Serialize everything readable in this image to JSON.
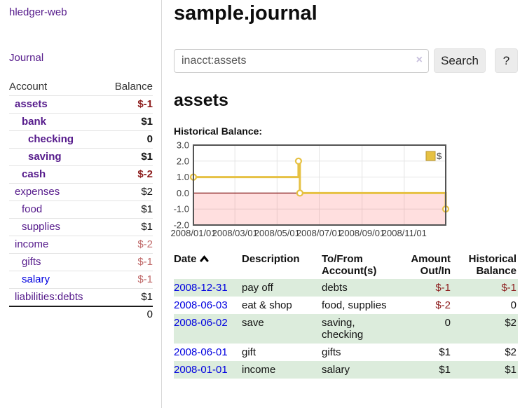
{
  "sidebar": {
    "brand": "hledger-web",
    "journal_link": "Journal",
    "accounts_table": {
      "header_account": "Account",
      "header_balance": "Balance",
      "rows": [
        {
          "name": "assets",
          "balance": "$-1"
        },
        {
          "name": "bank",
          "balance": "$1"
        },
        {
          "name": "checking",
          "balance": "0"
        },
        {
          "name": "saving",
          "balance": "$1"
        },
        {
          "name": "cash",
          "balance": "$-2"
        },
        {
          "name": "expenses",
          "balance": "$2"
        },
        {
          "name": "food",
          "balance": "$1"
        },
        {
          "name": "supplies",
          "balance": "$1"
        },
        {
          "name": "income",
          "balance": "$-2"
        },
        {
          "name": "gifts",
          "balance": "$-1"
        },
        {
          "name": "salary",
          "balance": "$-1"
        },
        {
          "name": "liabilities:debts",
          "balance": "$1"
        }
      ],
      "total": "0"
    }
  },
  "main": {
    "title": "sample.journal",
    "search": {
      "query": "inacct:assets",
      "clear_icon": "×",
      "search_button": "Search",
      "help_button": "?"
    },
    "account_heading": "assets",
    "chart_label": "Historical Balance:",
    "register": {
      "headers": {
        "date": "Date",
        "description": "Description",
        "accounts": "To/From Account(s)",
        "amount": "Amount Out/In",
        "balance": "Historical Balance"
      },
      "rows": [
        {
          "date": "2008-12-31",
          "description": "pay off",
          "accounts": "debts",
          "amount": "$-1",
          "balance": "$-1"
        },
        {
          "date": "2008-06-03",
          "description": "eat & shop",
          "accounts": "food, supplies",
          "amount": "$-2",
          "balance": "0"
        },
        {
          "date": "2008-06-02",
          "description": "save",
          "accounts": "saving, checking",
          "amount": "0",
          "balance": "$2"
        },
        {
          "date": "2008-06-01",
          "description": "gift",
          "accounts": "gifts",
          "amount": "$1",
          "balance": "$2"
        },
        {
          "date": "2008-01-01",
          "description": "income",
          "accounts": "salary",
          "amount": "$1",
          "balance": "$1"
        }
      ]
    }
  },
  "chart_data": {
    "type": "line",
    "title": "Historical Balance",
    "series": [
      {
        "name": "$",
        "step": true,
        "points_day_value": [
          [
            0,
            1
          ],
          [
            152,
            2
          ],
          [
            154,
            0
          ],
          [
            365,
            -1
          ]
        ]
      }
    ],
    "x_ticks": [
      {
        "label": "2008/01/01",
        "day": 0
      },
      {
        "label": "2008/03/01",
        "day": 60
      },
      {
        "label": "2008/05/01",
        "day": 121
      },
      {
        "label": "2008/07/01",
        "day": 182
      },
      {
        "label": "2008/09/01",
        "day": 244
      },
      {
        "label": "2008/11/01",
        "day": 305
      }
    ],
    "x_range_days": 365,
    "y_ticks": [
      "3.0",
      "2.0",
      "1.0",
      "0.0",
      "-1.0",
      "-2.0"
    ],
    "ylim": [
      -2,
      3
    ],
    "legend_position": "top-right",
    "grid": true,
    "colors": {
      "line": "#e6c143",
      "marker_fill": "#ffffff",
      "negative_fill": "rgba(255,80,80,0.18)",
      "zero_line": "#7f1010",
      "grid": "#e4e4e4",
      "border": "#545454",
      "tick_text": "#3c3c3c"
    }
  }
}
